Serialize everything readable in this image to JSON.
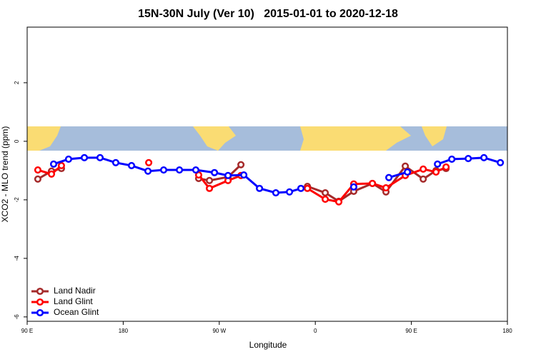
{
  "chart_data": {
    "type": "line",
    "title": "15N-30N July (Ver 10)   2015-01-01 to 2020-12-18",
    "x_label": "Longitude",
    "y_label": "XCO2 - MLO trend (ppm)",
    "xlim": [
      90,
      540
    ],
    "xticks": [
      {
        "value": 90,
        "label": "90 E"
      },
      180,
      {
        "value": 270,
        "label": "90 W"
      },
      {
        "value": 360,
        "label": "0"
      },
      {
        "value": 450,
        "label": "90 E"
      },
      {
        "value": 540,
        "label": "180"
      }
    ],
    "ylim": [
      -6.15,
      3.9
    ],
    "yticks": [
      -6,
      -4,
      -2,
      0,
      2
    ],
    "legend": "bottom-left",
    "series": [
      {
        "name": "Land Nadir",
        "color": "#a52a2a",
        "x": [
          100,
          112.8,
          122.1,
          null,
          250.7,
          260.8,
          278.2,
          290.3,
          null,
          352.6,
          369.3,
          382,
          396,
          413.5,
          426.2,
          444.3,
          461.1,
          473.1,
          482.5
        ],
        "values": [
          -1.29,
          -1.02,
          -0.93,
          null,
          -1.27,
          -1.34,
          -1.22,
          -0.8,
          null,
          -1.54,
          -1.76,
          -2.05,
          -1.71,
          -1.44,
          -1.73,
          -0.85,
          -1.29,
          -1.0,
          -0.93
        ]
      },
      {
        "name": "Land Glint",
        "color": "#ff0000",
        "x": [
          100,
          112.8,
          122.1,
          null,
          203.9,
          null,
          250.7,
          260.8,
          278.2,
          290.3,
          null,
          352.6,
          369.3,
          382,
          396,
          413.5,
          426.2,
          444.3,
          461.1,
          473.1,
          482.5
        ],
        "values": [
          -0.98,
          -1.12,
          -0.83,
          null,
          -0.73,
          null,
          -1.15,
          -1.61,
          -1.34,
          -1.17,
          null,
          -1.61,
          -1.98,
          -2.07,
          -1.46,
          -1.44,
          -1.59,
          -1.17,
          -0.95,
          -1.05,
          -0.88
        ]
      },
      {
        "name": "Ocean Glint",
        "color": "#0000ff",
        "x": [
          114.8,
          128.8,
          143.6,
          158.3,
          173,
          187.8,
          203.2,
          217.9,
          232.7,
          248,
          265.5,
          278.2,
          293,
          307.7,
          323,
          335.8,
          346.5,
          null,
          396,
          null,
          428.9,
          446.3,
          null,
          474.5,
          487.9,
          503.3,
          518,
          533.4
        ],
        "values": [
          -0.78,
          -0.61,
          -0.56,
          -0.56,
          -0.73,
          -0.83,
          -1.02,
          -0.98,
          -0.98,
          -0.98,
          -1.07,
          -1.17,
          -1.15,
          -1.61,
          -1.76,
          -1.73,
          -1.61,
          null,
          -1.56,
          null,
          -1.24,
          -1.05,
          null,
          -0.78,
          -0.61,
          -0.59,
          -0.56,
          -0.73
        ]
      }
    ]
  }
}
